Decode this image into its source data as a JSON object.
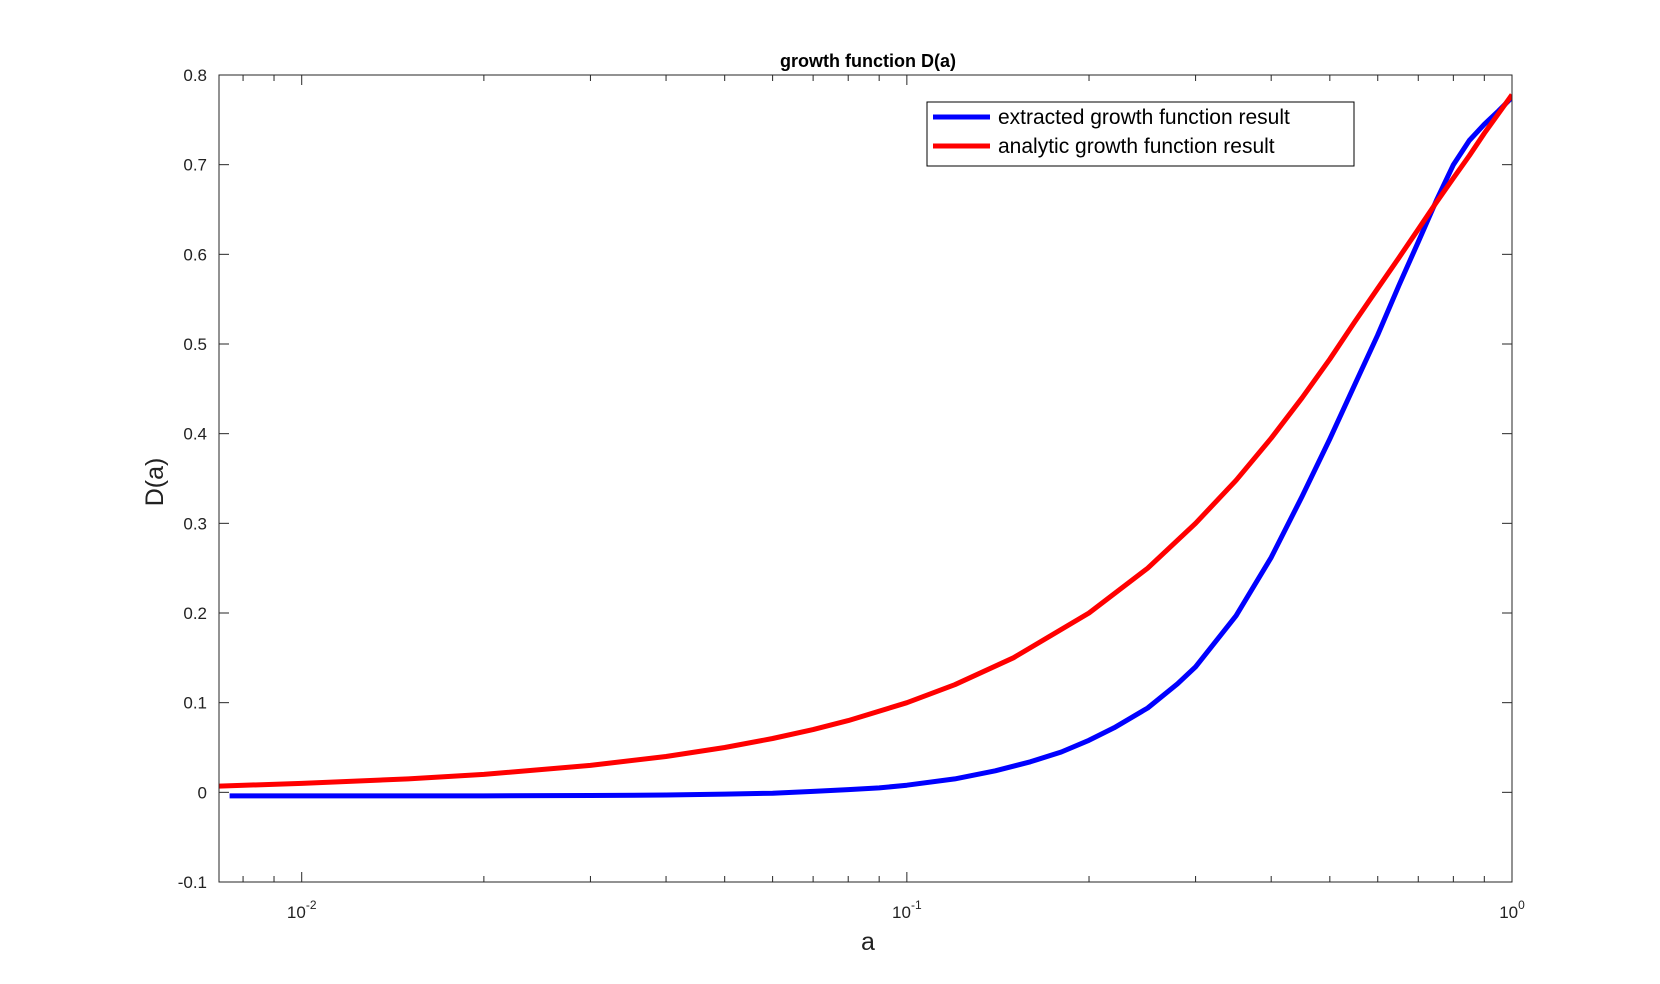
{
  "chart_data": {
    "type": "line",
    "title": "growth function D(a)",
    "xlabel": "a",
    "ylabel": "D(a)",
    "xscale": "log",
    "xlim": [
      0.0073,
      1.0
    ],
    "ylim": [
      -0.1,
      0.8
    ],
    "grid": false,
    "legend_position": "top-right",
    "x_ticks": [
      {
        "value": 0.01,
        "base": "10",
        "exp": "-2"
      },
      {
        "value": 0.1,
        "base": "10",
        "exp": "-1"
      },
      {
        "value": 1,
        "base": "10",
        "exp": "0"
      }
    ],
    "y_ticks": [
      -0.1,
      0,
      0.1,
      0.2,
      0.3,
      0.4,
      0.5,
      0.6,
      0.7,
      0.8
    ],
    "y_tick_labels": [
      "-0.1",
      "0",
      "0.1",
      "0.2",
      "0.3",
      "0.4",
      "0.5",
      "0.6",
      "0.7",
      "0.8"
    ],
    "series": [
      {
        "name": "extracted growth function result",
        "color": "#0000ff",
        "x": [
          0.0076,
          0.01,
          0.015,
          0.02,
          0.03,
          0.04,
          0.05,
          0.06,
          0.07,
          0.08,
          0.09,
          0.1,
          0.12,
          0.14,
          0.16,
          0.18,
          0.2,
          0.22,
          0.25,
          0.28,
          0.3,
          0.35,
          0.4,
          0.45,
          0.5,
          0.55,
          0.6,
          0.65,
          0.7,
          0.75,
          0.8,
          0.85,
          0.9,
          0.95,
          1.0
        ],
        "y": [
          -0.004,
          -0.004,
          -0.004,
          -0.004,
          -0.0035,
          -0.003,
          -0.002,
          -0.001,
          0.001,
          0.003,
          0.005,
          0.008,
          0.015,
          0.024,
          0.034,
          0.045,
          0.058,
          0.072,
          0.094,
          0.121,
          0.14,
          0.197,
          0.262,
          0.33,
          0.394,
          0.455,
          0.51,
          0.565,
          0.614,
          0.66,
          0.7,
          0.727,
          0.745,
          0.76,
          0.775
        ]
      },
      {
        "name": "analytic growth function result",
        "color": "#ff0000",
        "x": [
          0.0073,
          0.01,
          0.015,
          0.02,
          0.03,
          0.04,
          0.05,
          0.06,
          0.07,
          0.08,
          0.1,
          0.12,
          0.15,
          0.2,
          0.25,
          0.3,
          0.35,
          0.4,
          0.45,
          0.5,
          0.55,
          0.6,
          0.65,
          0.7,
          0.75,
          0.8,
          0.85,
          0.9,
          0.95,
          1.0
        ],
        "y": [
          0.007,
          0.01,
          0.015,
          0.02,
          0.03,
          0.04,
          0.05,
          0.06,
          0.07,
          0.08,
          0.1,
          0.12,
          0.15,
          0.2,
          0.25,
          0.3,
          0.348,
          0.395,
          0.44,
          0.483,
          0.525,
          0.562,
          0.596,
          0.628,
          0.658,
          0.685,
          0.71,
          0.735,
          0.757,
          0.778
        ]
      }
    ]
  }
}
